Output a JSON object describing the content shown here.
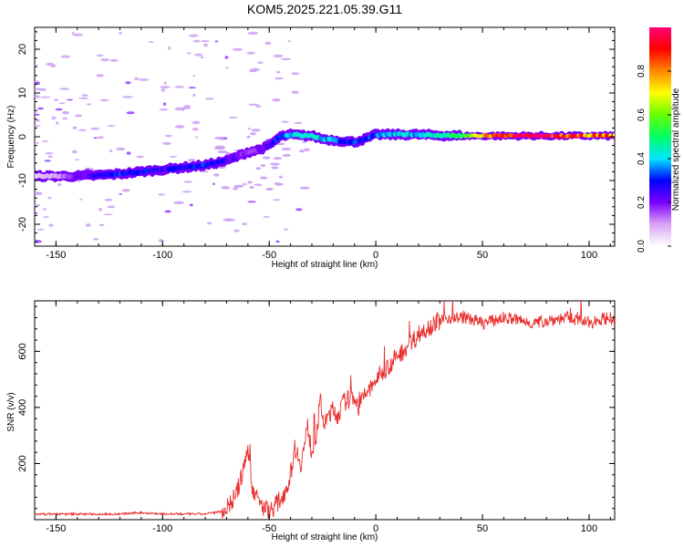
{
  "title": "KOM5.2025.221.05.39.G11",
  "chart_data": [
    {
      "type": "heatmap",
      "xlabel": "Height of straight line (km)",
      "ylabel": "Frequency (Hz)",
      "xlim": [
        -160,
        112
      ],
      "ylim": [
        -25,
        25
      ],
      "xticks": [
        -150,
        -100,
        -50,
        0,
        50,
        100
      ],
      "yticks": [
        -20,
        -10,
        0,
        10,
        20
      ],
      "ridge": {
        "x": [
          -160,
          -150,
          -140,
          -130,
          -120,
          -110,
          -100,
          -90,
          -80,
          -70,
          -65,
          -60,
          -55,
          -50,
          -45,
          -40,
          -35,
          -30,
          -25,
          -20,
          -15,
          -10,
          -5,
          0,
          10,
          20,
          30,
          40,
          50,
          60,
          70,
          80,
          90,
          100,
          112
        ],
        "freq": [
          -9,
          -9,
          -9,
          -8.8,
          -8.5,
          -8,
          -7.5,
          -7,
          -6.5,
          -5.5,
          -4.5,
          -3.5,
          -3,
          -2,
          0,
          0.5,
          0.3,
          0.2,
          -0.5,
          -0.8,
          -1,
          -1.2,
          -0.5,
          0.5,
          0.5,
          0.5,
          0.3,
          0.2,
          0.2,
          0.2,
          0.2,
          0.2,
          0.2,
          0.2,
          0.2
        ],
        "amplitude": [
          0.05,
          0.1,
          0.2,
          0.25,
          0.3,
          0.3,
          0.25,
          0.3,
          0.3,
          0.25,
          0.2,
          0.15,
          0.2,
          0.25,
          0.35,
          0.4,
          0.45,
          0.45,
          0.4,
          0.35,
          0.3,
          0.3,
          0.3,
          0.35,
          0.4,
          0.4,
          0.45,
          0.5,
          0.75,
          0.9,
          1.0,
          0.95,
          0.85,
          0.8,
          0.8
        ]
      },
      "colorbar": {
        "label": "Normalized spectral amplitude",
        "ticks": [
          "0.0",
          "0.2",
          "0.4",
          "0.6",
          "0.8"
        ],
        "range": [
          0,
          1
        ]
      }
    },
    {
      "type": "line",
      "xlabel": "Height of straight line (km)",
      "ylabel": "SNR (v/v)",
      "xlim": [
        -160,
        112
      ],
      "ylim": [
        0,
        780
      ],
      "xticks": [
        -150,
        -100,
        -50,
        0,
        50,
        100
      ],
      "yticks": [
        200,
        400,
        600
      ],
      "color": "#e8302f",
      "series": [
        {
          "name": "SNR",
          "x": [
            -160,
            -150,
            -140,
            -130,
            -120,
            -110,
            -100,
            -90,
            -80,
            -72,
            -68,
            -65,
            -62,
            -60,
            -58,
            -55,
            -52,
            -50,
            -48,
            -45,
            -42,
            -40,
            -38,
            -35,
            -32,
            -30,
            -28,
            -26,
            -24,
            -22,
            -20,
            -18,
            -15,
            -12,
            -10,
            -8,
            -5,
            -2,
            0,
            5,
            10,
            15,
            20,
            25,
            30,
            35,
            40,
            45,
            50,
            55,
            60,
            65,
            70,
            75,
            80,
            85,
            90,
            95,
            100,
            105,
            110,
            112
          ],
          "y": [
            20,
            20,
            20,
            20,
            20,
            25,
            20,
            20,
            20,
            30,
            60,
            100,
            180,
            260,
            120,
            60,
            40,
            30,
            45,
            70,
            110,
            160,
            260,
            200,
            330,
            240,
            300,
            420,
            330,
            380,
            390,
            370,
            420,
            430,
            440,
            400,
            450,
            470,
            500,
            540,
            580,
            620,
            660,
            690,
            710,
            720,
            720,
            715,
            700,
            710,
            720,
            715,
            705,
            700,
            710,
            715,
            720,
            710,
            700,
            715,
            720,
            700
          ]
        }
      ]
    }
  ]
}
